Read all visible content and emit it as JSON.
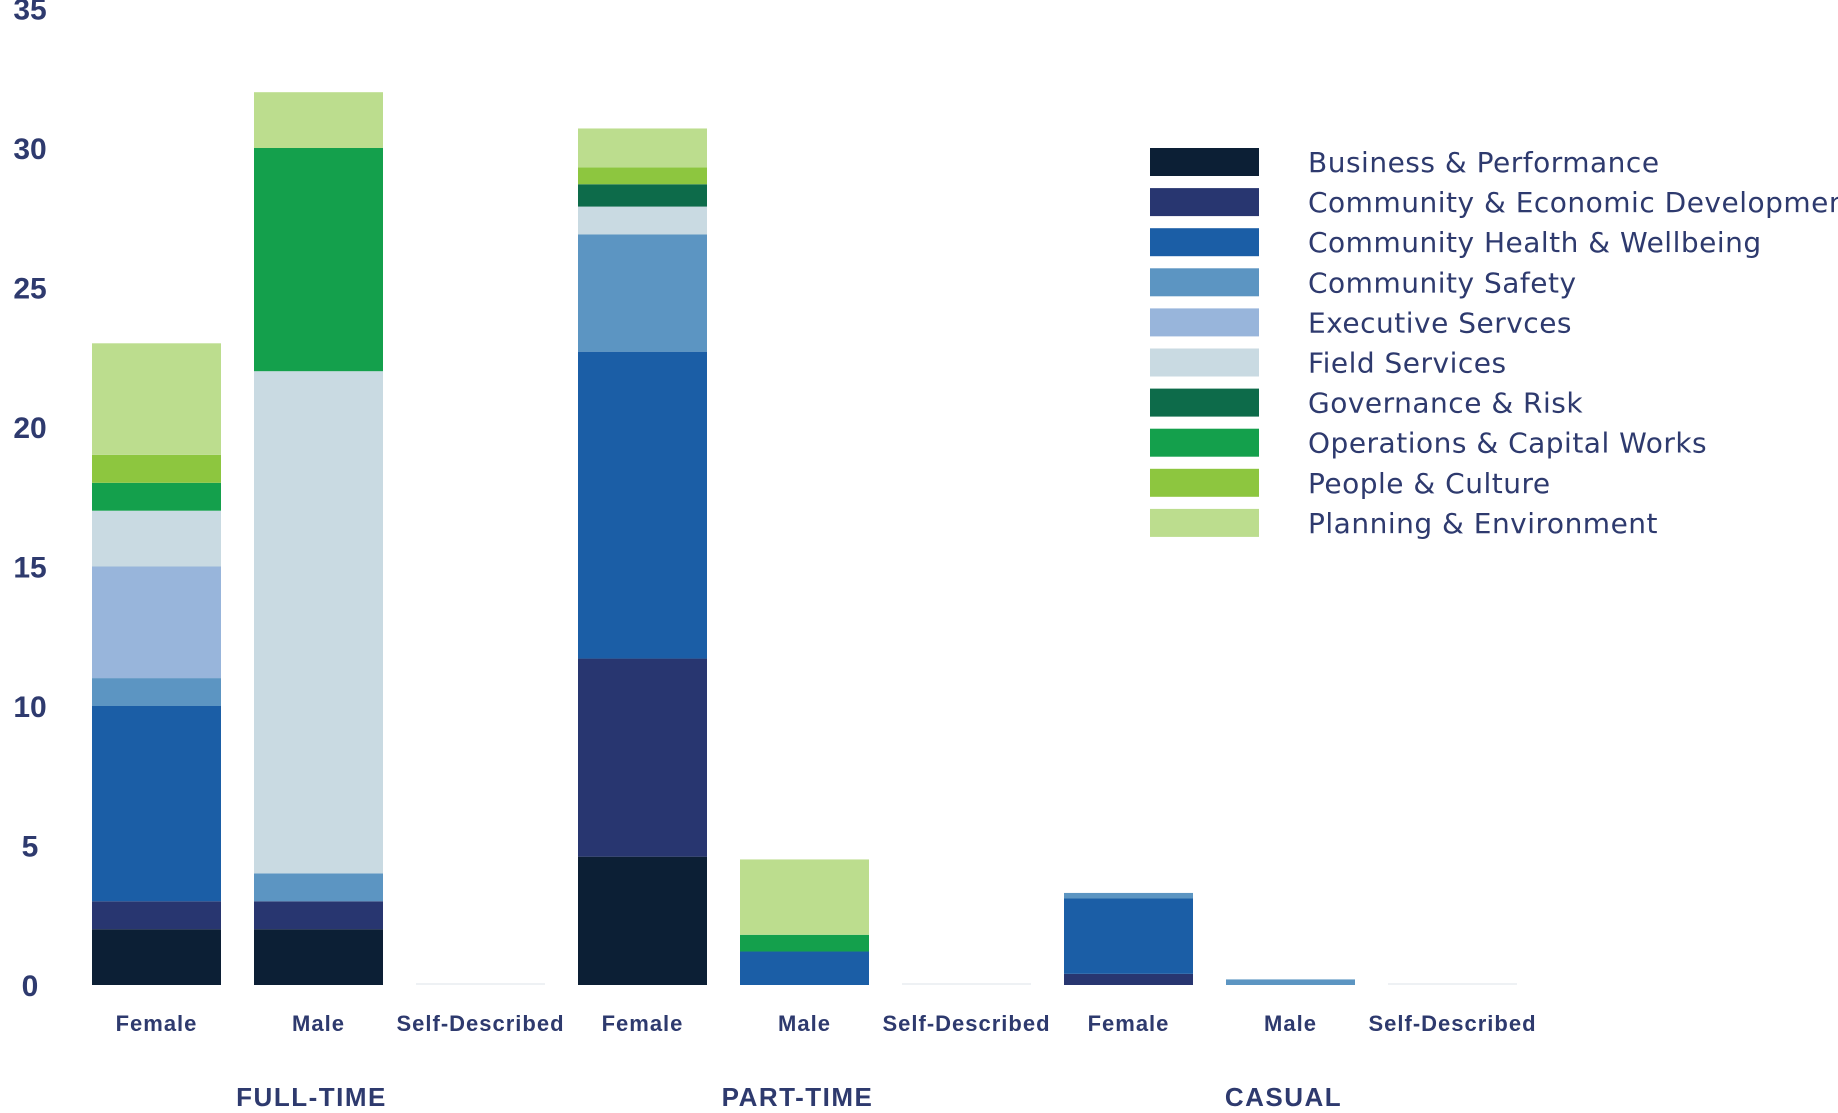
{
  "chart_data": {
    "type": "bar",
    "stacked": true,
    "ylim": [
      0,
      35
    ],
    "yticks": [
      "0",
      "5",
      "10",
      "15",
      "20",
      "25",
      "30",
      "35"
    ],
    "grid": false,
    "legend_position": "top-right",
    "groups": [
      {
        "label": "FULL-TIME",
        "categories": [
          "Female",
          "Male",
          "Self-Described"
        ]
      },
      {
        "label": "PART-TIME",
        "categories": [
          "Female",
          "Male",
          "Self-Described"
        ]
      },
      {
        "label": "CASUAL",
        "categories": [
          "Female",
          "Male",
          "Self-Described"
        ]
      }
    ],
    "series": [
      {
        "name": "Business & Performance",
        "color": "#0c1f35",
        "values": [
          2,
          2,
          0,
          4.6,
          0,
          0,
          0,
          0,
          0
        ]
      },
      {
        "name": "Community & Economic Development",
        "color": "#283670",
        "values": [
          1,
          1,
          0,
          7.1,
          0,
          0,
          0.4,
          0,
          0
        ]
      },
      {
        "name": "Community Health & Wellbeing",
        "color": "#1b5ea6",
        "values": [
          7,
          0,
          0,
          11,
          1.2,
          0,
          2.7,
          0,
          0
        ]
      },
      {
        "name": "Community Safety",
        "color": "#5c95c2",
        "values": [
          1,
          1,
          0,
          4.2,
          0,
          0,
          0.2,
          0.2,
          0
        ]
      },
      {
        "name": "Executive Servces",
        "color": "#98b5db",
        "values": [
          4,
          0,
          0,
          0,
          0,
          0,
          0,
          0,
          0
        ]
      },
      {
        "name": "Field Services",
        "color": "#c9dae2",
        "values": [
          2,
          18,
          0,
          1,
          0,
          0,
          0,
          0,
          0
        ]
      },
      {
        "name": "Governance & Risk",
        "color": "#0d6b4a",
        "values": [
          0,
          0,
          0,
          0.8,
          0,
          0,
          0,
          0,
          0
        ]
      },
      {
        "name": "Operations & Capital Works",
        "color": "#14a04c",
        "values": [
          1,
          8,
          0,
          0,
          0.6,
          0,
          0,
          0,
          0
        ]
      },
      {
        "name": "People & Culture",
        "color": "#8dc63f",
        "values": [
          1,
          0,
          0,
          0.6,
          0,
          0,
          0,
          0,
          0
        ]
      },
      {
        "name": "Planning & Environment",
        "color": "#bcdd8e",
        "values": [
          4,
          2,
          0,
          1.4,
          2.7,
          0,
          0,
          0,
          0
        ]
      }
    ]
  }
}
